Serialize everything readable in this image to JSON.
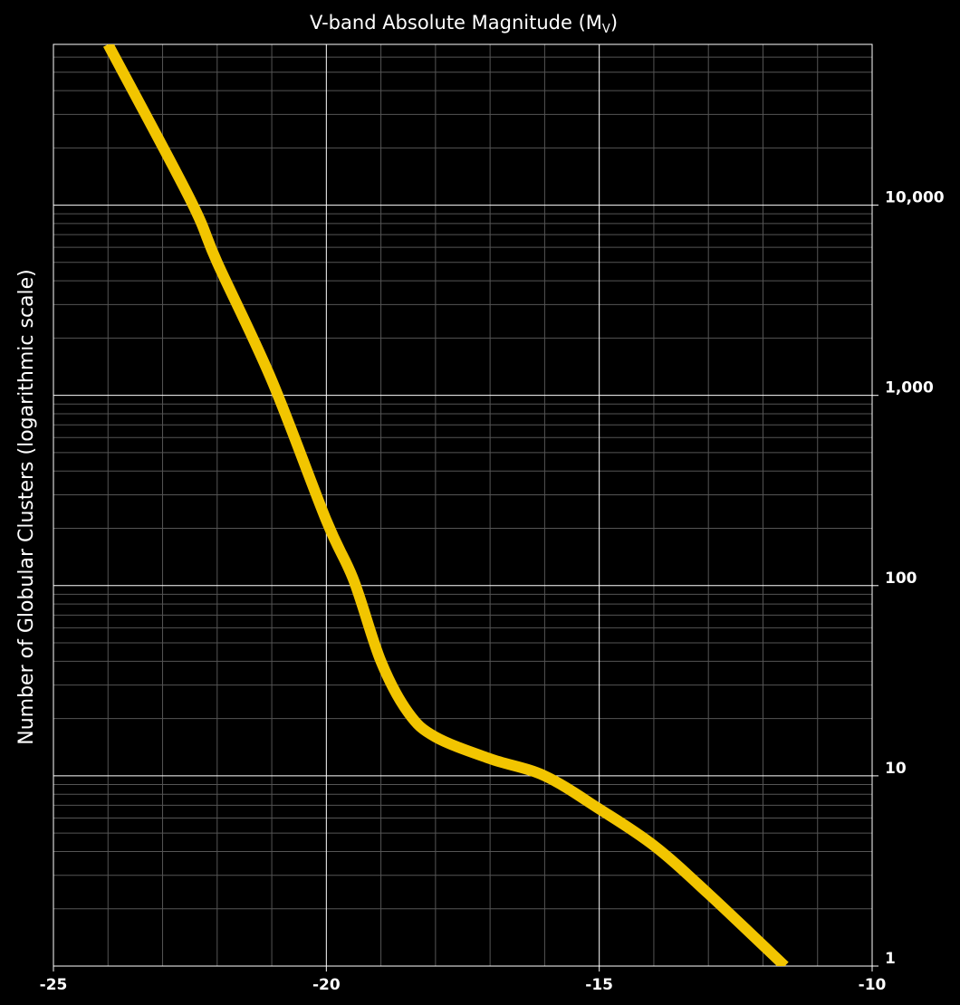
{
  "chart_data": {
    "type": "line",
    "xlabel_parts": [
      "V-band Absolute Magnitude (M",
      "V",
      ")"
    ],
    "ylabel": "Number of Globular Clusters (logarithmic scale)",
    "x": [
      -24,
      -22.5,
      -22,
      -21,
      -20,
      -19.5,
      -19,
      -18.5,
      -18,
      -17,
      -16,
      -15,
      -14,
      -13,
      -11.6
    ],
    "series": [
      {
        "color": "#f2c500",
        "values": [
          70000,
          10800,
          5000,
          1200,
          220,
          107,
          40,
          21.5,
          16,
          12.3,
          10,
          6.7,
          4.3,
          2.4,
          1
        ]
      }
    ],
    "xlim": [
      -25,
      -10
    ],
    "xticks": [
      -25,
      -20,
      -15,
      -10
    ],
    "xminor_ticks": [
      -24,
      -23,
      -22,
      -21,
      -19,
      -18,
      -17,
      -16,
      -14,
      -13,
      -12,
      -11
    ],
    "ylim": [
      1,
      70000
    ],
    "ylog": true,
    "yticks": [
      1,
      10,
      100,
      {
        "value": 1000,
        "label": "1,000"
      },
      {
        "value": 10000,
        "label": "10,000"
      }
    ],
    "yminor_ticks": [
      2,
      3,
      4,
      5,
      6,
      7,
      8,
      9,
      20,
      30,
      40,
      50,
      60,
      70,
      80,
      90,
      200,
      300,
      400,
      500,
      600,
      700,
      800,
      900,
      2000,
      3000,
      4000,
      5000,
      6000,
      7000,
      8000,
      9000,
      20000,
      30000,
      40000,
      50000,
      60000
    ],
    "grid": true
  }
}
